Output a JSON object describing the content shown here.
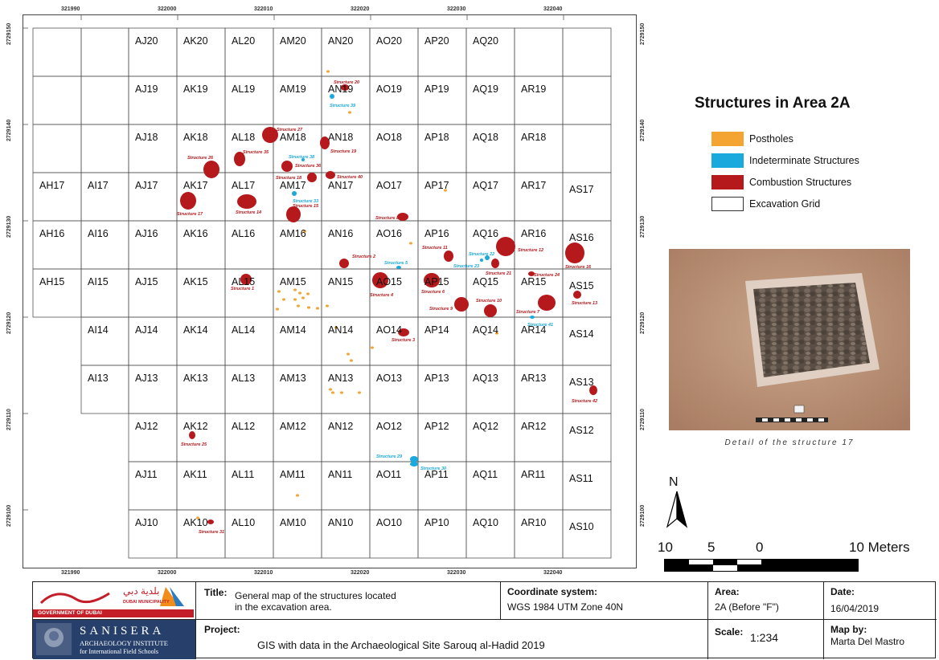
{
  "legend": {
    "title": "Structures in Area 2A",
    "items": [
      {
        "label": "Postholes",
        "color": "#f4a531"
      },
      {
        "label": "Indeterminate Structures",
        "color": "#1aa9dc"
      },
      {
        "label": "Combustion Structures",
        "color": "#b5191c"
      },
      {
        "label": "Excavation Grid",
        "color": "#ffffff"
      }
    ]
  },
  "coordinates": {
    "x_labels": [
      "321990",
      "322000",
      "322010",
      "322020",
      "322030",
      "322040"
    ],
    "y_labels": [
      "2729150",
      "2729140",
      "2729130",
      "2729120",
      "2729110",
      "2729100"
    ]
  },
  "grid": {
    "rows": [
      {
        "cells": [
          "",
          "",
          "AJ20",
          "AK20",
          "AL20",
          "AM20",
          "AN20",
          "AO20",
          "AP20",
          "AQ20",
          "",
          ""
        ]
      },
      {
        "cells": [
          "",
          "",
          "AJ19",
          "AK19",
          "AL19",
          "AM19",
          "AN19",
          "AO19",
          "AP19",
          "AQ19",
          "AR19",
          ""
        ]
      },
      {
        "cells": [
          "",
          "",
          "AJ18",
          "AK18",
          "AL18",
          "AM18",
          "AN18",
          "AO18",
          "AP18",
          "AQ18",
          "AR18",
          ""
        ]
      },
      {
        "cells": [
          "AH17",
          "AI17",
          "AJ17",
          "AK17",
          "AL17",
          "AM17",
          "AN17",
          "AO17",
          "AP17",
          "AQ17",
          "AR17",
          "AS17"
        ]
      },
      {
        "cells": [
          "AH16",
          "AI16",
          "AJ16",
          "AK16",
          "AL16",
          "AM16",
          "AN16",
          "AO16",
          "AP16",
          "AQ16",
          "AR16",
          "AS16"
        ]
      },
      {
        "cells": [
          "AH15",
          "AI15",
          "AJ15",
          "AK15",
          "AL15",
          "AM15",
          "AN15",
          "AO15",
          "AP15",
          "AQ15",
          "AR15",
          "AS15"
        ]
      },
      {
        "cells": [
          "",
          "AI14",
          "AJ14",
          "AK14",
          "AL14",
          "AM14",
          "AN14",
          "AO14",
          "AP14",
          "AQ14",
          "AR14",
          "AS14"
        ]
      },
      {
        "cells": [
          "",
          "AI13",
          "AJ13",
          "AK13",
          "AL13",
          "AM13",
          "AN13",
          "AO13",
          "AP13",
          "AQ13",
          "AR13",
          "AS13"
        ]
      },
      {
        "cells": [
          "",
          "",
          "AJ12",
          "AK12",
          "AL12",
          "AM12",
          "AN12",
          "AO12",
          "AP12",
          "AQ12",
          "AR12",
          "AS12"
        ]
      },
      {
        "cells": [
          "",
          "",
          "AJ11",
          "AK11",
          "AL11",
          "AM11",
          "AN11",
          "AO11",
          "AP11",
          "AQ11",
          "AR11",
          "AS11"
        ]
      },
      {
        "cells": [
          "",
          "",
          "AJ10",
          "AK10",
          "AL10",
          "AM10",
          "AN10",
          "AO10",
          "AP10",
          "AQ10",
          "AR10",
          "AS10"
        ]
      }
    ]
  },
  "structures": [
    {
      "label": "Structure 1",
      "type": "combustion"
    },
    {
      "label": "Structure 2",
      "type": "combustion"
    },
    {
      "label": "Structure 3",
      "type": "combustion"
    },
    {
      "label": "Structure 4",
      "type": "combustion"
    },
    {
      "label": "Structure 5",
      "type": "indeterminate"
    },
    {
      "label": "Structure 6",
      "type": "combustion"
    },
    {
      "label": "Structure 7",
      "type": "combustion"
    },
    {
      "label": "Structure 8",
      "type": "combustion"
    },
    {
      "label": "Structure 9",
      "type": "combustion"
    },
    {
      "label": "Structure 10",
      "type": "combustion"
    },
    {
      "label": "Structure 11",
      "type": "combustion"
    },
    {
      "label": "Structure 12",
      "type": "combustion"
    },
    {
      "label": "Structure 13",
      "type": "combustion"
    },
    {
      "label": "Structure 14",
      "type": "combustion"
    },
    {
      "label": "Structure 15",
      "type": "combustion"
    },
    {
      "label": "Structure 16",
      "type": "combustion"
    },
    {
      "label": "Structure 17",
      "type": "combustion"
    },
    {
      "label": "Structure 18",
      "type": "combustion"
    },
    {
      "label": "Structure 19",
      "type": "combustion"
    },
    {
      "label": "Structure 20",
      "type": "combustion"
    },
    {
      "label": "Structure 21",
      "type": "combustion"
    },
    {
      "label": "Structure 22",
      "type": "indeterminate"
    },
    {
      "label": "Structure 23",
      "type": "indeterminate"
    },
    {
      "label": "Structure 24",
      "type": "combustion"
    },
    {
      "label": "Structure 25",
      "type": "combustion"
    },
    {
      "label": "Structure 26",
      "type": "combustion"
    },
    {
      "label": "Structure 27",
      "type": "combustion"
    },
    {
      "label": "Structure 29",
      "type": "indeterminate"
    },
    {
      "label": "Structure 30",
      "type": "indeterminate"
    },
    {
      "label": "Structure 31",
      "type": "combustion"
    },
    {
      "label": "Structure 33",
      "type": "indeterminate"
    },
    {
      "label": "Structure 35",
      "type": "combustion"
    },
    {
      "label": "Structure 36",
      "type": "combustion"
    },
    {
      "label": "Structure 38",
      "type": "indeterminate"
    },
    {
      "label": "Structure 39",
      "type": "indeterminate"
    },
    {
      "label": "Structure 40",
      "type": "combustion"
    },
    {
      "label": "Structure 41",
      "type": "indeterminate"
    },
    {
      "label": "Structure 42",
      "type": "combustion"
    }
  ],
  "photo": {
    "caption": "Detail of the structure 17"
  },
  "north_arrow": {
    "label": "N"
  },
  "scale_bar": {
    "labels": [
      "10",
      "5",
      "0",
      "10 Meters"
    ]
  },
  "title_block": {
    "title_label": "Title:",
    "title_line1": "General map of the structures located",
    "title_line2": "in the excavation area.",
    "coord_label": "Coordinate system:",
    "coord_value": "WGS 1984 UTM Zone 40N",
    "area_label": "Area:",
    "area_value": "2A (Before \"F\")",
    "date_label": "Date:",
    "date_value": "16/04/2019",
    "project_label": "Project:",
    "project_value": "GIS with data in the Archaeological Site Sarouq al-Hadid 2019",
    "scale_label": "Scale:",
    "scale_value": "1:234",
    "mapby_label": "Map by:",
    "mapby_value": "Marta Del Mastro",
    "logo1_text_arabic": "بلدية دبي",
    "logo1_text_english": "DUBAI MUNICIPALITY",
    "logo1_gov": "GOVERNMENT OF DUBAI",
    "logo2_name": "SANISERA",
    "logo2_line1": "ARCHAEOLOGY INSTITUTE",
    "logo2_line2": "for International Field Schools"
  },
  "colors": {
    "posthole": "#f4a531",
    "indeterminate": "#1aa9dc",
    "combustion": "#b5191c"
  }
}
